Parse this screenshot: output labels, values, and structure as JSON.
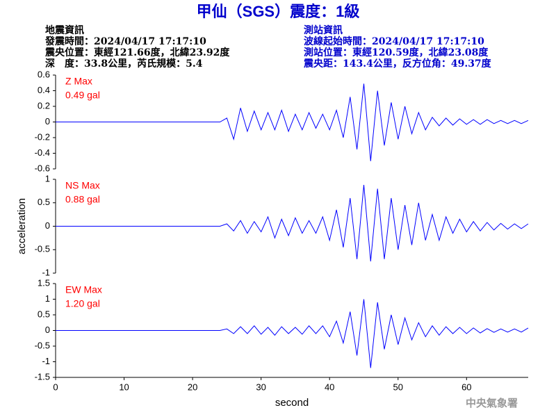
{
  "header": {
    "title": "甲仙（SGS）震度：1級",
    "left": [
      "地震資訊",
      "發震時間：2024/04/17 17:17:10",
      "震央位置：東經121.66度，北緯23.92度",
      "深　度：33.8公里，芮氏規模：5.4"
    ],
    "right": [
      "測站資訊",
      "波線起始時間：2024/04/17 17:17:10",
      "測站位置：東經120.59度，北緯23.08度",
      "震央距：143.4公里，反方位角：49.37度"
    ]
  },
  "footer": "中央氣象署",
  "chart_data": [
    {
      "type": "line",
      "annotations": [
        "Z Max",
        "0.49 gal"
      ],
      "annotation_color": "#ff0000",
      "x": [
        0,
        24,
        25,
        26,
        27,
        28,
        29,
        30,
        31,
        32,
        33,
        34,
        35,
        36,
        37,
        38,
        39,
        40,
        41,
        42,
        43,
        44,
        45,
        46,
        47,
        48,
        49,
        50,
        51,
        52,
        53,
        54,
        55,
        56,
        57,
        58,
        59,
        60,
        61,
        62,
        63,
        64,
        65,
        66,
        67,
        68,
        69
      ],
      "series": [
        {
          "color": "#0000ff",
          "values": [
            0,
            0,
            0.05,
            -0.22,
            0.18,
            -0.12,
            0.14,
            -0.1,
            0.12,
            -0.1,
            0.15,
            -0.12,
            0.1,
            -0.1,
            0.12,
            -0.08,
            0.1,
            -0.1,
            0.15,
            -0.2,
            0.32,
            -0.35,
            0.49,
            -0.5,
            0.4,
            -0.3,
            0.25,
            -0.22,
            0.2,
            -0.15,
            0.12,
            -0.1,
            0.06,
            -0.05,
            0.05,
            -0.04,
            0.04,
            -0.03,
            0.03,
            -0.03,
            0.03,
            -0.02,
            0.02,
            -0.02,
            0.02,
            -0.02,
            0.02
          ]
        }
      ],
      "xlim": [
        0,
        69
      ],
      "ylim": [
        -0.6,
        0.6
      ],
      "yticks": [
        -0.6,
        -0.4,
        -0.2,
        0,
        0.2,
        0.4,
        0.6
      ]
    },
    {
      "type": "line",
      "annotations": [
        "NS Max",
        "0.88 gal"
      ],
      "annotation_color": "#ff0000",
      "ylabel": "acceleration",
      "x": [
        0,
        24,
        25,
        26,
        27,
        28,
        29,
        30,
        31,
        32,
        33,
        34,
        35,
        36,
        37,
        38,
        39,
        40,
        41,
        42,
        43,
        44,
        45,
        46,
        47,
        48,
        49,
        50,
        51,
        52,
        53,
        54,
        55,
        56,
        57,
        58,
        59,
        60,
        61,
        62,
        63,
        64,
        65,
        66,
        67,
        68,
        69
      ],
      "series": [
        {
          "color": "#0000ff",
          "values": [
            0,
            0,
            0.05,
            -0.1,
            0.12,
            -0.15,
            0.1,
            -0.12,
            0.2,
            -0.25,
            0.15,
            -0.2,
            0.18,
            -0.15,
            0.12,
            -0.15,
            0.2,
            -0.3,
            0.35,
            -0.45,
            0.6,
            -0.7,
            0.88,
            -0.75,
            0.8,
            -0.7,
            0.6,
            -0.5,
            0.45,
            -0.4,
            0.5,
            -0.3,
            0.25,
            -0.3,
            0.2,
            -0.15,
            0.15,
            -0.12,
            0.1,
            -0.1,
            0.08,
            -0.08,
            0.06,
            -0.06,
            0.05,
            -0.05,
            0.05
          ]
        }
      ],
      "xlim": [
        0,
        69
      ],
      "ylim": [
        -1,
        1
      ],
      "yticks": [
        -1,
        -0.5,
        0,
        0.5,
        1
      ]
    },
    {
      "type": "line",
      "annotations": [
        "EW Max",
        "1.20 gal"
      ],
      "annotation_color": "#ff0000",
      "xlabel": "second",
      "x": [
        0,
        24,
        25,
        26,
        27,
        28,
        29,
        30,
        31,
        32,
        33,
        34,
        35,
        36,
        37,
        38,
        39,
        40,
        41,
        42,
        43,
        44,
        45,
        46,
        47,
        48,
        49,
        50,
        51,
        52,
        53,
        54,
        55,
        56,
        57,
        58,
        59,
        60,
        61,
        62,
        63,
        64,
        65,
        66,
        67,
        68,
        69
      ],
      "series": [
        {
          "color": "#0000ff",
          "values": [
            0,
            0,
            0.05,
            -0.1,
            0.12,
            -0.1,
            0.15,
            -0.12,
            0.1,
            -0.15,
            0.12,
            -0.1,
            0.1,
            -0.12,
            0.15,
            -0.1,
            0.15,
            -0.2,
            0.3,
            -0.4,
            0.6,
            -0.8,
            1.0,
            -1.2,
            0.9,
            -0.6,
            0.5,
            -0.45,
            0.4,
            -0.3,
            0.25,
            -0.2,
            0.15,
            -0.15,
            0.12,
            -0.1,
            0.1,
            -0.1,
            0.08,
            -0.08,
            0.06,
            -0.06,
            0.05,
            -0.05,
            0.05,
            -0.05,
            0.08
          ]
        }
      ],
      "xlim": [
        0,
        69
      ],
      "ylim": [
        -1.5,
        1.5
      ],
      "yticks": [
        -1.5,
        -1,
        -0.5,
        0,
        0.5,
        1,
        1.5
      ],
      "xticks": [
        0,
        10,
        20,
        30,
        40,
        50,
        60
      ]
    }
  ]
}
